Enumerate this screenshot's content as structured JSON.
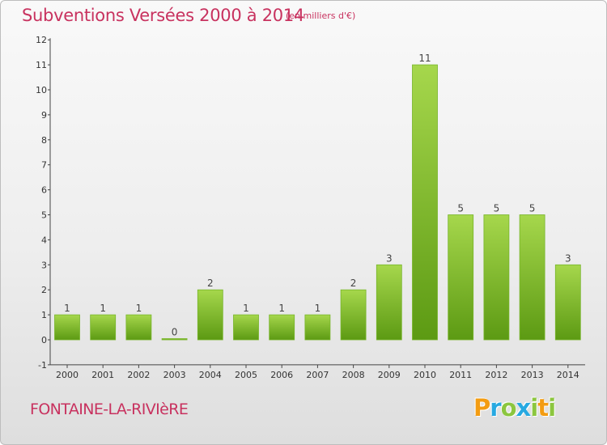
{
  "header": {
    "title": "Subventions Versées 2000 à 2014",
    "unit_note": "(en milliers d'€)"
  },
  "footer": {
    "commune": "FONTAINE-LA-RIVIèRE",
    "logo_letters": [
      "P",
      "r",
      "o",
      "x",
      "i",
      "t",
      "i"
    ]
  },
  "colors": {
    "title": "#c8325f",
    "bar_light": "#a6d74c",
    "bar_dark": "#5c9a13",
    "logo": [
      "#f39c12",
      "#27a9e1",
      "#8cc63f",
      "#27a9e1",
      "#8cc63f",
      "#f39c12",
      "#8cc63f"
    ]
  },
  "chart_data": {
    "type": "bar",
    "title": "Subventions Versées 2000 à 2014",
    "subtitle": "(en milliers d'€)",
    "xlabel": "",
    "ylabel": "",
    "categories": [
      "2000",
      "2001",
      "2002",
      "2003",
      "2004",
      "2005",
      "2006",
      "2007",
      "2008",
      "2009",
      "2010",
      "2011",
      "2012",
      "2013",
      "2014"
    ],
    "values": [
      1,
      1,
      1,
      0,
      2,
      1,
      1,
      1,
      2,
      3,
      11,
      5,
      5,
      5,
      3
    ],
    "data_labels": [
      "1",
      "1",
      "1",
      "0",
      "2",
      "1",
      "1",
      "1",
      "2",
      "3",
      "11",
      "5",
      "5",
      "5",
      "3"
    ],
    "yticks": [
      "-1",
      "0",
      "1",
      "2",
      "3",
      "4",
      "5",
      "6",
      "7",
      "8",
      "9",
      "10",
      "11",
      "12"
    ],
    "ylim": [
      -1,
      12
    ],
    "grid": false,
    "legend": "none"
  }
}
